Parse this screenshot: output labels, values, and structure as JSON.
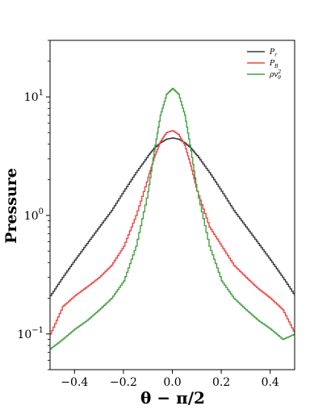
{
  "chart_data": {
    "type": "line",
    "title": "",
    "xlabel": "θ − π/2",
    "ylabel": "Pressure",
    "xlim": [
      -0.5,
      0.5
    ],
    "ylim": [
      0.05,
      30
    ],
    "yscale": "log",
    "grid": false,
    "legend_position": "top-right",
    "x_ticks": [
      -0.4,
      -0.2,
      0.0,
      0.2,
      0.4
    ],
    "x_tick_labels": [
      "−0.4",
      "−0.2",
      "0.0",
      "0.2",
      "0.4"
    ],
    "y_ticks": [
      0.1,
      1,
      10
    ],
    "y_tick_labels": [
      {
        "base": "10",
        "exp": "−1"
      },
      {
        "base": "10",
        "exp": "0"
      },
      {
        "base": "10",
        "exp": "1"
      }
    ],
    "x": [
      -0.5,
      -0.45,
      -0.4,
      -0.35,
      -0.3,
      -0.25,
      -0.2,
      -0.15,
      -0.1,
      -0.075,
      -0.05,
      -0.025,
      0.0,
      0.025,
      0.05,
      0.075,
      0.1,
      0.15,
      0.2,
      0.25,
      0.3,
      0.35,
      0.4,
      0.45,
      0.5
    ],
    "series": [
      {
        "name": "P_r",
        "legend_base": "P",
        "legend_sub": "r",
        "legend_sup": "",
        "color": "#3a3a3a",
        "values": [
          0.21,
          0.3,
          0.42,
          0.58,
          0.8,
          1.1,
          1.6,
          2.3,
          3.2,
          3.7,
          4.1,
          4.4,
          4.5,
          4.4,
          4.1,
          3.7,
          3.2,
          2.3,
          1.6,
          1.1,
          0.8,
          0.58,
          0.42,
          0.3,
          0.21
        ]
      },
      {
        "name": "P_B",
        "legend_base": "P",
        "legend_sub": "B",
        "legend_sup": "",
        "color": "#ee4444",
        "values": [
          0.1,
          0.17,
          0.21,
          0.25,
          0.3,
          0.38,
          0.55,
          1.0,
          2.1,
          3.1,
          4.2,
          5.0,
          5.2,
          4.8,
          3.9,
          2.6,
          1.6,
          0.8,
          0.55,
          0.38,
          0.3,
          0.24,
          0.2,
          0.16,
          0.1
        ]
      },
      {
        "name": "ρv_θ^2",
        "legend_base": "ρv",
        "legend_sub": "θ",
        "legend_sup": "2",
        "color": "#44a044",
        "values": [
          0.075,
          0.09,
          0.11,
          0.13,
          0.16,
          0.2,
          0.28,
          0.55,
          1.6,
          3.5,
          7.0,
          10.5,
          11.8,
          10.5,
          7.0,
          3.5,
          1.6,
          0.55,
          0.28,
          0.2,
          0.16,
          0.13,
          0.11,
          0.09,
          0.1
        ]
      }
    ]
  }
}
